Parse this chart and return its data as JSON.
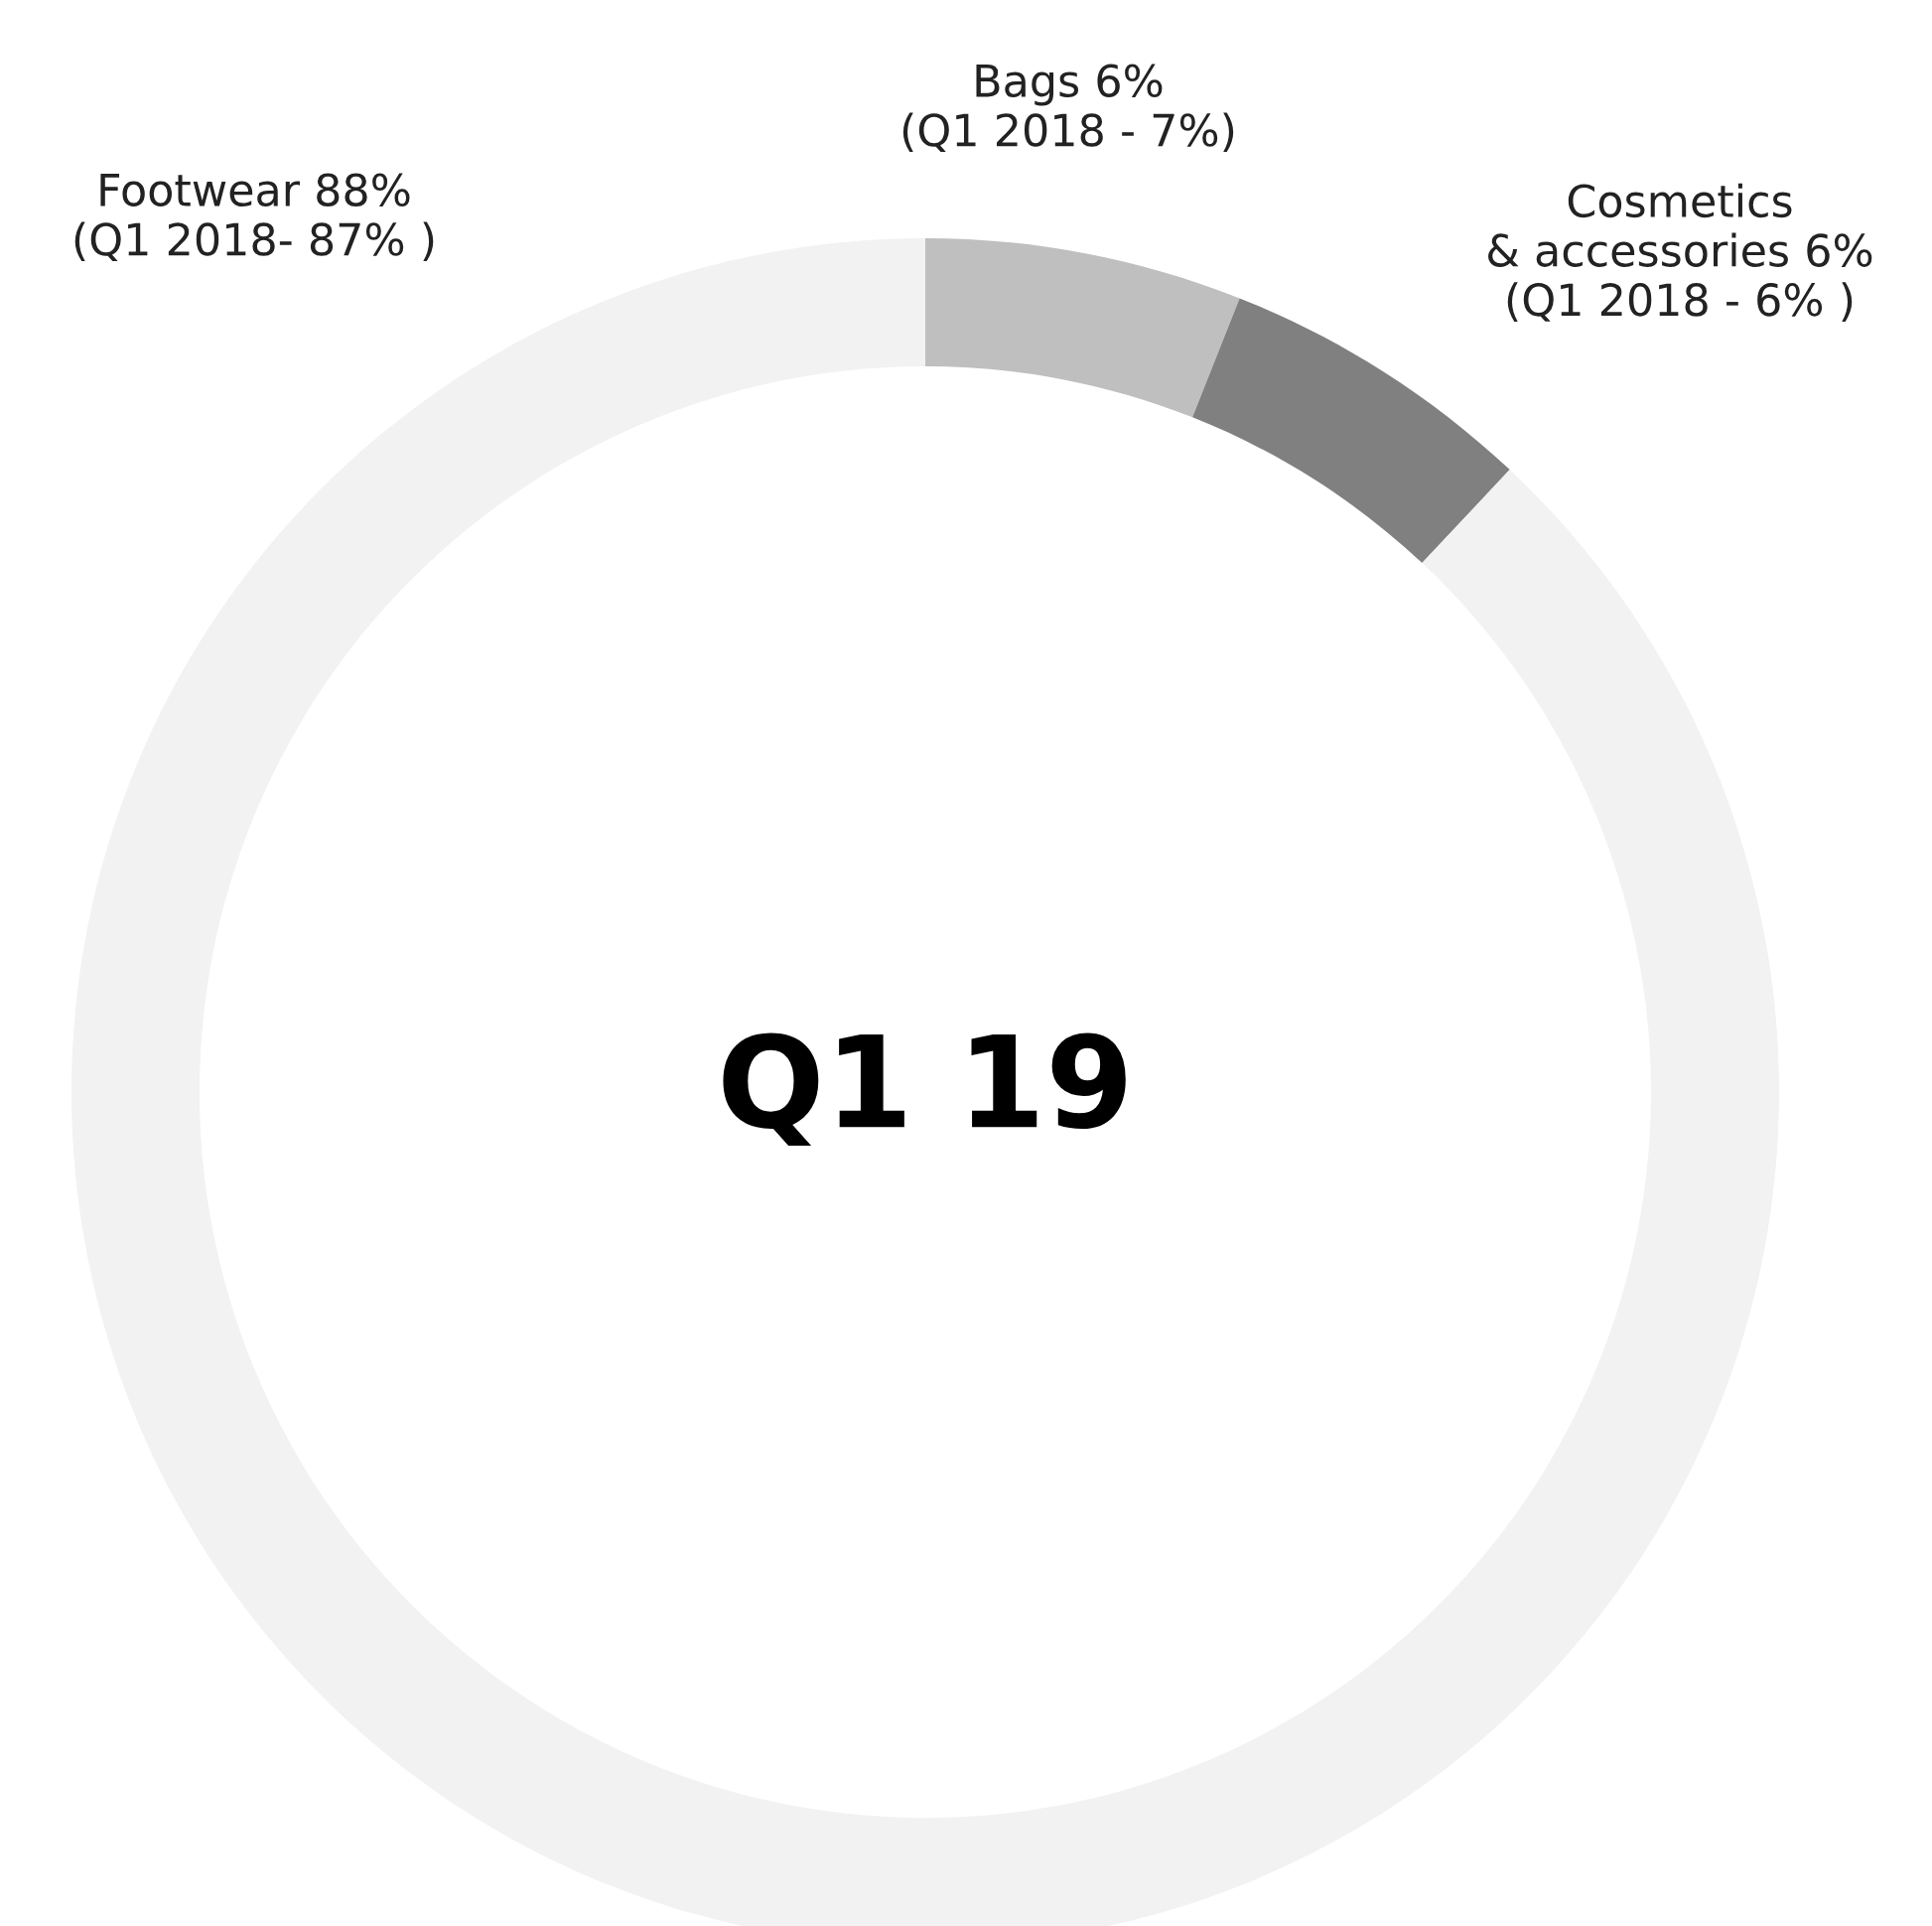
{
  "chart_data": {
    "type": "donut",
    "title": "Q1 19",
    "categories": [
      "Bags 6%\n(Q1 2018 - 7%)",
      "Cosmetics\n& accessories 6%\n(Q1 2018 - 6% )",
      "Footwear 88%\n(Q1 2018- 87% )"
    ],
    "values": [
      6,
      6,
      88
    ],
    "colors": [
      "#bfbfbf",
      "#808080",
      "#f2f2f2"
    ]
  }
}
